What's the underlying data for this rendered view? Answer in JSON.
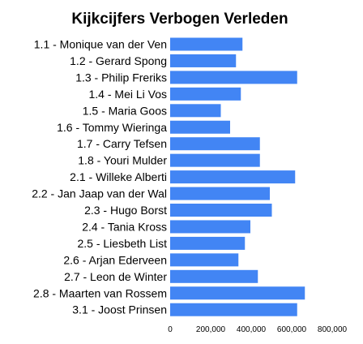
{
  "chart_data": {
    "type": "bar",
    "orientation": "horizontal",
    "title": "Kijkcijfers Verbogen Verleden",
    "xlabel": "",
    "ylabel": "",
    "categories": [
      "1.1 - Monique van der Ven",
      "1.2 - Gerard Spong",
      "1.3 - Philip Freriks",
      "1.4 - Mei Li Vos",
      "1.5 - Maria Goos",
      "1.6 - Tommy Wieringa",
      "1.7 - Carry Tefsen",
      "1.8 - Youri Mulder",
      "2.1 - Willeke Alberti",
      "2.2 - Jan Jaap van der Wal",
      "2.3 - Hugo Borst",
      "2.4 - Tania Kross",
      "2.5 - Liesbeth List",
      "2.6 - Arjan Ederveen",
      "2.7 - Leon de Winter",
      "2.8 - Maarten van Rossem",
      "3.1 - Joost Prinsen"
    ],
    "values": [
      357000,
      325000,
      627000,
      349000,
      250000,
      296000,
      443000,
      443000,
      617000,
      492000,
      502000,
      396000,
      369000,
      337000,
      433000,
      665000,
      627000
    ],
    "xlim": [
      0,
      800000
    ],
    "xticks": [
      "0",
      "200,000",
      "400,000",
      "600,000",
      "800,000"
    ],
    "bar_color": "#4285f4",
    "grid": false,
    "legend": "none"
  }
}
